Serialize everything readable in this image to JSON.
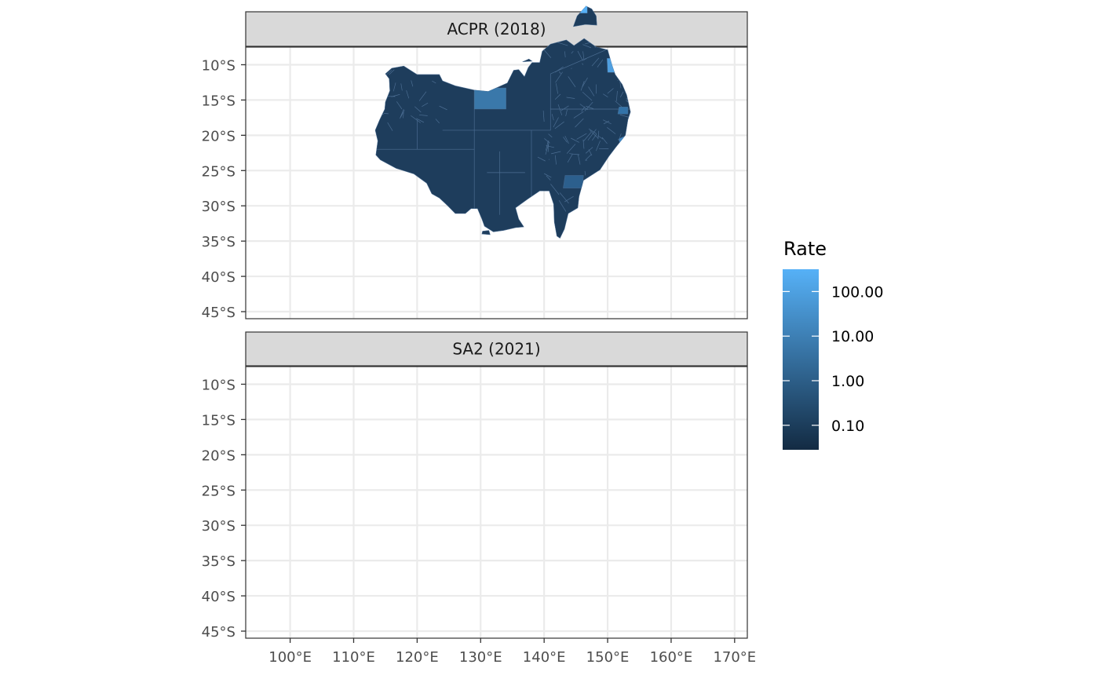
{
  "panels": [
    {
      "strip_label": "ACPR (2018)"
    },
    {
      "strip_label": "SA2 (2021)"
    }
  ],
  "axes": {
    "y_ticks": [
      "10°S",
      "15°S",
      "20°S",
      "25°S",
      "30°S",
      "35°S",
      "40°S",
      "45°S"
    ],
    "x_ticks": [
      "100°E",
      "110°E",
      "120°E",
      "130°E",
      "140°E",
      "150°E",
      "160°E",
      "170°E"
    ],
    "y_values": [
      -10,
      -15,
      -20,
      -25,
      -30,
      -35,
      -40,
      -45
    ],
    "x_values": [
      100,
      110,
      120,
      130,
      140,
      150,
      160,
      170
    ],
    "lon_range": [
      93,
      172
    ],
    "lat_range": [
      -46,
      -7.5
    ]
  },
  "legend": {
    "title": "Rate",
    "labels": [
      "100.00",
      "10.00",
      "1.00",
      "0.10"
    ],
    "values": [
      100,
      10,
      1,
      0.1
    ],
    "scale": "log10",
    "color_low": "#132B43",
    "color_high": "#56B1F7"
  },
  "colors": {
    "strip_fill": "#d9d9d9",
    "panel_border": "#333333",
    "grid": "#ebebeb",
    "region_base": "#1e3d5c",
    "region_border": "#4d6f94"
  }
}
